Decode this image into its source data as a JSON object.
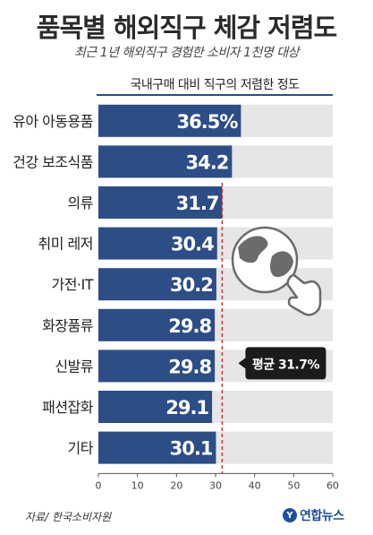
{
  "title": "품목별 해외직구 체감 저렴도",
  "subtitle": "최근 1년 해외직구 경험한 소비자 1천명 대상",
  "chart_data": {
    "type": "bar",
    "orientation": "horizontal",
    "header": "국내구매 대비 직구의 저렴한 정도",
    "categories": [
      "유아 아동용품",
      "건강 보조식품",
      "의류",
      "취미 레저",
      "가전·IT",
      "화장품류",
      "신발류",
      "패션잡화",
      "기타"
    ],
    "values": [
      36.5,
      34.2,
      31.7,
      30.4,
      30.2,
      29.8,
      29.8,
      29.1,
      30.1
    ],
    "value_labels": [
      "36.5%",
      "34.2",
      "31.7",
      "30.4",
      "30.2",
      "29.8",
      "29.8",
      "29.1",
      "30.1"
    ],
    "xlim": [
      0,
      60
    ],
    "xticks": [
      "0",
      "10",
      "20",
      "30",
      "40",
      "50",
      "60"
    ],
    "average": {
      "value": 31.7,
      "label": "평균 31.7%"
    },
    "bar_color": "#2d4d86",
    "track_color": "#e6e6e6",
    "average_line_color": "#c0392b",
    "grid": true
  },
  "source": "자료/ 한국소비자원",
  "logo_text": "연합뉴스",
  "illustration": "globe-hand-pointer-icon"
}
